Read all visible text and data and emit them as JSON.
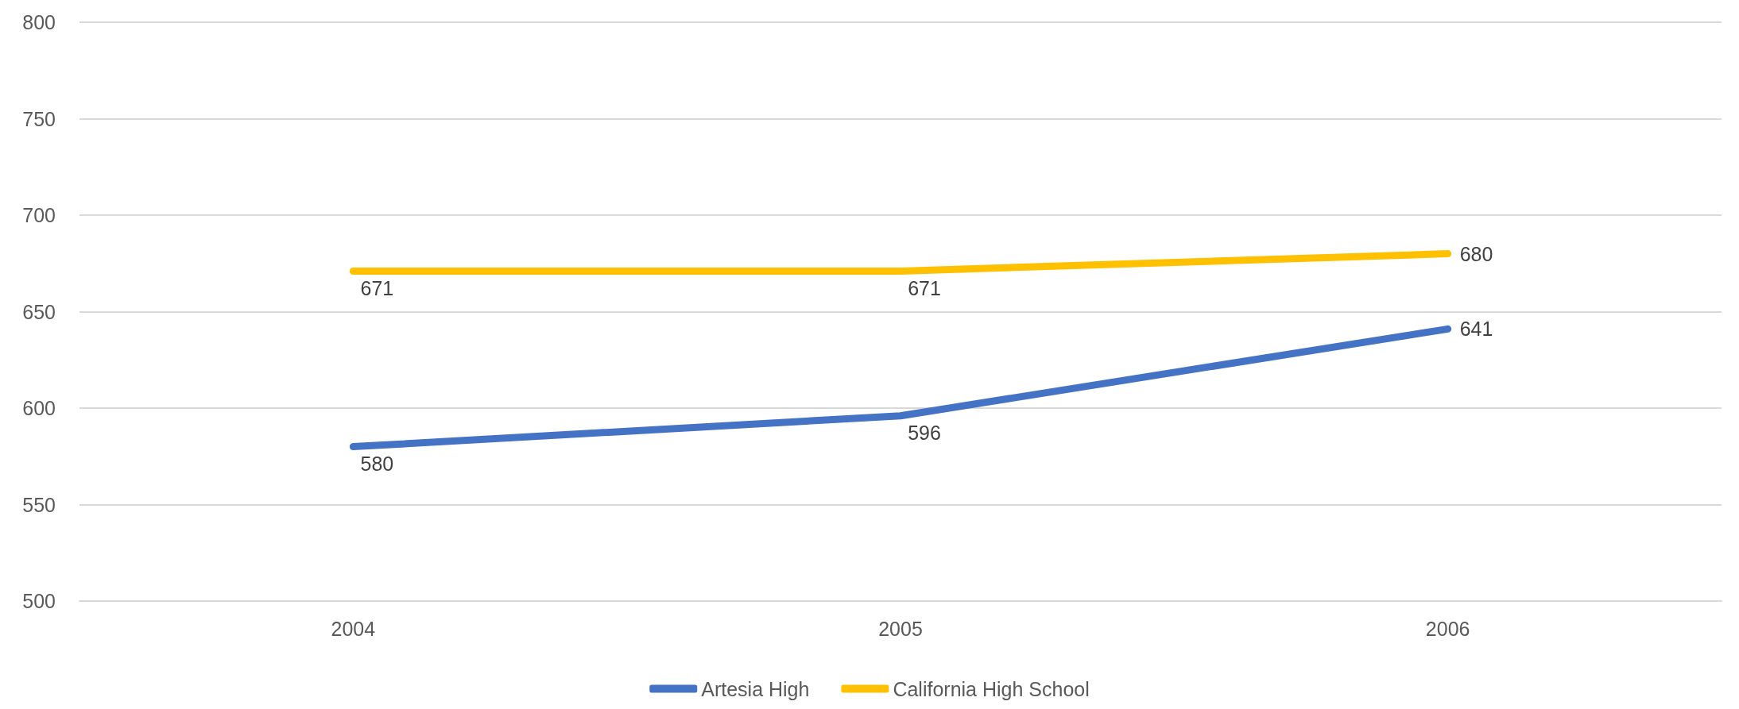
{
  "chart_data": {
    "type": "line",
    "categories": [
      "2004",
      "2005",
      "2006"
    ],
    "series": [
      {
        "name": "Artesia High",
        "color": "#4472c4",
        "values": [
          580,
          596,
          641
        ]
      },
      {
        "name": "California High School",
        "color": "#ffc000",
        "values": [
          671,
          671,
          680
        ]
      }
    ],
    "ylim": [
      500,
      800
    ],
    "yticks": [
      500,
      550,
      600,
      650,
      700,
      750,
      800
    ],
    "grid": "y",
    "legend": "bottom",
    "marker": "none",
    "line_style": "solid",
    "data_labels": true
  }
}
